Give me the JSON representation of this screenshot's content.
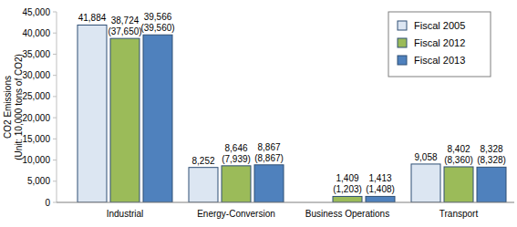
{
  "chart_data": {
    "type": "bar",
    "y_label": "CO2 Emissions (Unit: 10,000 tons of CO2)",
    "categories": [
      "Industrial",
      "Energy-Conversion",
      "Business Operations",
      "Transport"
    ],
    "series": [
      {
        "name": "Fiscal 2005",
        "color": "#dce6f2",
        "values": [
          41884,
          8252,
          null,
          9058
        ],
        "value_labels": [
          "41,884",
          "8,252",
          null,
          "9,058"
        ]
      },
      {
        "name": "Fiscal 2012",
        "color": "#9bbb59",
        "values": [
          38724,
          8646,
          1409,
          8402
        ],
        "value_labels": [
          "38,724",
          "8,646",
          "1,409",
          "8,402"
        ],
        "parenthesized_values": [
          37650,
          7939,
          1203,
          8360
        ],
        "parenthesized_value_labels": [
          "(37,650)",
          "(7,939)",
          "(1,203)",
          "(8,360)"
        ]
      },
      {
        "name": "Fiscal 2013",
        "color": "#4f81bd",
        "values": [
          39566,
          8867,
          1413,
          8328
        ],
        "value_labels": [
          "39,566",
          "8,867",
          "1,413",
          "8,328"
        ],
        "parenthesized_values": [
          39560,
          8867,
          1408,
          8328
        ],
        "parenthesized_value_labels": [
          "(39,560)",
          "(8,867)",
          "(1,408)",
          "(8,328)"
        ]
      }
    ],
    "ylim": [
      0,
      45000
    ],
    "yticks": [
      0,
      {
        "value": 5000,
        "label": "5,000"
      },
      {
        "value": 10000,
        "label": "10,000"
      },
      {
        "value": 15000,
        "label": "15,000"
      },
      {
        "value": 20000,
        "label": "20,000"
      },
      {
        "value": 25000,
        "label": "25,000"
      },
      {
        "value": 30000,
        "label": "30,000"
      },
      {
        "value": 35000,
        "label": "35,000"
      },
      {
        "value": 40000,
        "label": "40,000"
      },
      {
        "value": 45000,
        "label": "45,000"
      }
    ],
    "legend": "top-right",
    "data_labels": true,
    "grid": false
  }
}
